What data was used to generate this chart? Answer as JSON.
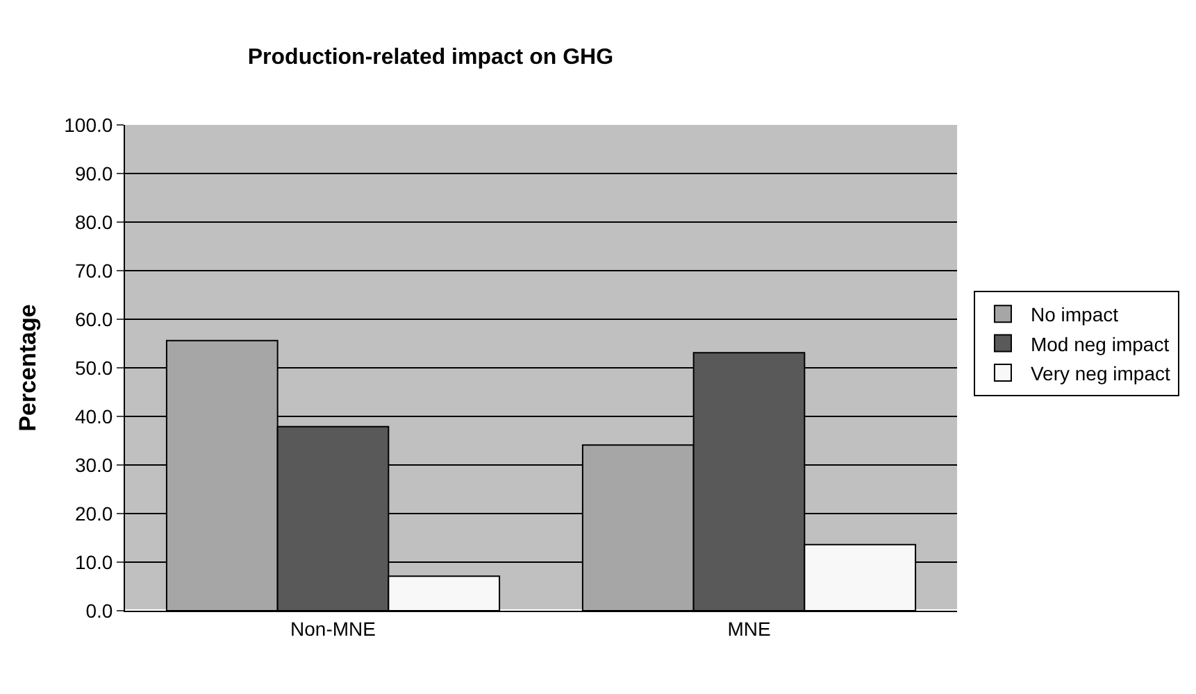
{
  "chart_data": {
    "type": "bar",
    "title": "Production-related impact on GHG",
    "ylabel": "Percentage",
    "categories": [
      "Non-MNE",
      "MNE"
    ],
    "series": [
      {
        "name": "No impact",
        "color": "#a6a6a6",
        "values": [
          55.6,
          34.1
        ]
      },
      {
        "name": "Mod neg impact",
        "color": "#595959",
        "values": [
          37.9,
          53.1
        ]
      },
      {
        "name": "Very neg impact",
        "color": "#f8f8f8",
        "values": [
          7.1,
          13.6
        ]
      }
    ],
    "ylim": [
      0,
      100
    ],
    "yticks": [
      {
        "value": 0,
        "label": "0.0"
      },
      {
        "value": 10,
        "label": "10.0"
      },
      {
        "value": 20,
        "label": "20.0"
      },
      {
        "value": 30,
        "label": "30.0"
      },
      {
        "value": 40,
        "label": "40.0"
      },
      {
        "value": 50,
        "label": "50.0"
      },
      {
        "value": 60,
        "label": "60.0"
      },
      {
        "value": 70,
        "label": "70.0"
      },
      {
        "value": 80,
        "label": "80.0"
      },
      {
        "value": 90,
        "label": "90.0"
      },
      {
        "value": 100,
        "label": "100.0"
      }
    ],
    "grid": "y",
    "legend": "right"
  }
}
